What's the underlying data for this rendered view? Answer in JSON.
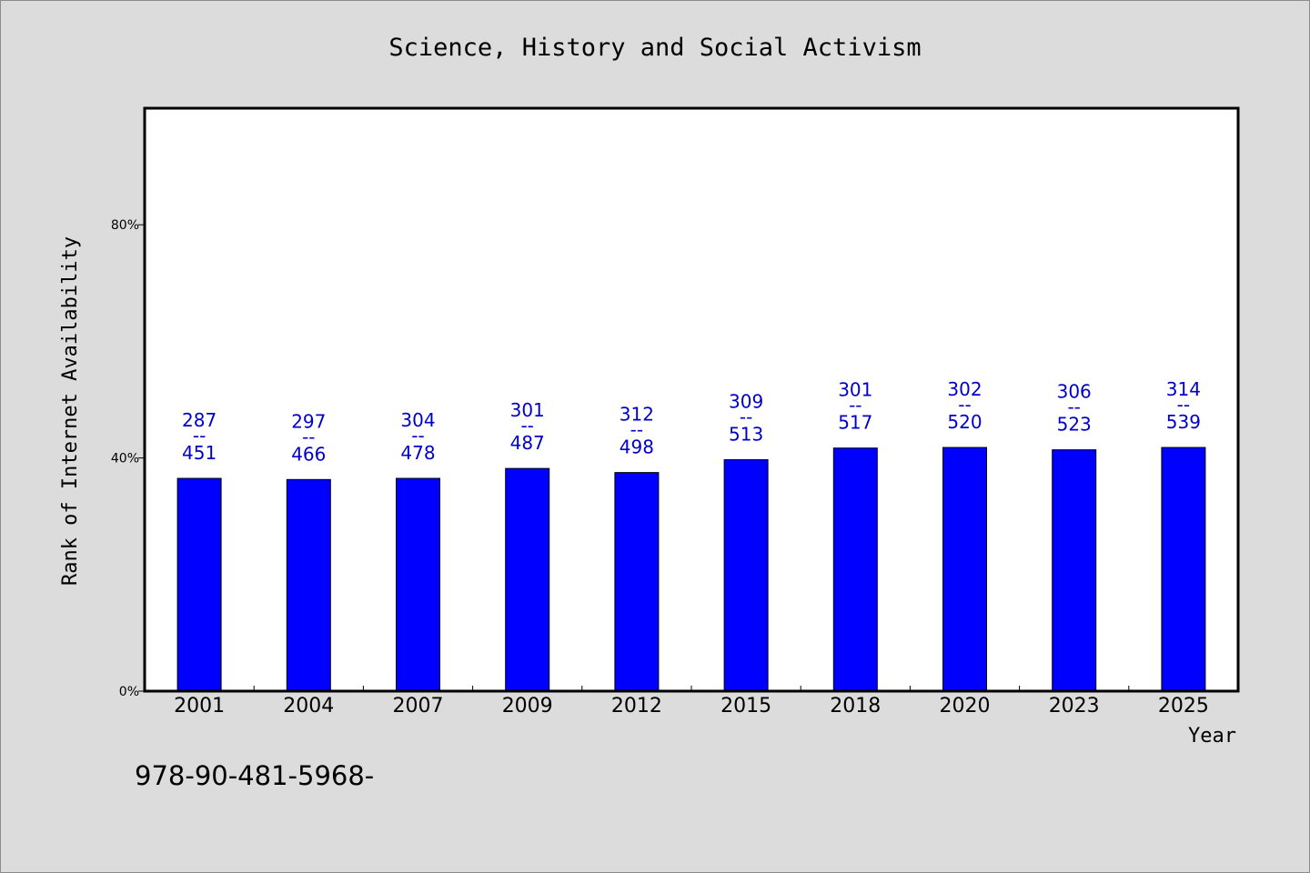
{
  "chart_data": {
    "type": "bar",
    "title": "Science, History and Social Activism",
    "xlabel": "Year",
    "ylabel": "Rank of Internet Availability",
    "categories": [
      "2001",
      "2004",
      "2007",
      "2009",
      "2012",
      "2015",
      "2018",
      "2020",
      "2023",
      "2025"
    ],
    "values": [
      36.5,
      36.3,
      36.5,
      38.2,
      37.5,
      39.7,
      41.7,
      41.8,
      41.4,
      41.8
    ],
    "value_unit": "%",
    "ylim": [
      0,
      100
    ],
    "yticks": [
      {
        "value": 0,
        "label": "0%"
      },
      {
        "value": 40,
        "label": "40%"
      },
      {
        "value": 80,
        "label": "80%"
      }
    ],
    "data_labels": [
      {
        "top": "287",
        "sep": "--",
        "bottom": "451"
      },
      {
        "top": "297",
        "sep": "--",
        "bottom": "466"
      },
      {
        "top": "304",
        "sep": "--",
        "bottom": "478"
      },
      {
        "top": "301",
        "sep": "--",
        "bottom": "487"
      },
      {
        "top": "312",
        "sep": "--",
        "bottom": "498"
      },
      {
        "top": "309",
        "sep": "--",
        "bottom": "513"
      },
      {
        "top": "301",
        "sep": "--",
        "bottom": "517"
      },
      {
        "top": "302",
        "sep": "--",
        "bottom": "520"
      },
      {
        "top": "306",
        "sep": "--",
        "bottom": "523"
      },
      {
        "top": "314",
        "sep": "--",
        "bottom": "539"
      }
    ],
    "grid": false,
    "colors": {
      "bar": "#0000ff",
      "bar_stroke": "#000000",
      "data_label": "#0000cc",
      "plot_background": "#ffffff",
      "page_background": "#dcdcdc"
    },
    "footnote": "978-90-481-5968-"
  }
}
